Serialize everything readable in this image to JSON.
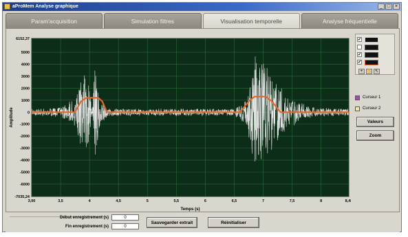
{
  "window": {
    "title": "aProMem Analyse graphique",
    "buttons": [
      "_",
      "□",
      "×"
    ]
  },
  "tabs": [
    {
      "label": "Param'acquisition",
      "active": false
    },
    {
      "label": "Simulation filtres",
      "active": false
    },
    {
      "label": "Visualisation temporelle",
      "active": true
    },
    {
      "label": "Analyse fréquentielle",
      "active": false
    }
  ],
  "colors": {
    "plot_bg": "#0c2d17",
    "grid": "#2f6a3d",
    "signal": "#e6e6e6",
    "envelope": "#e8652a",
    "cursor1": "#a64bb4",
    "cursor2": "#f2e7a2"
  },
  "side": {
    "legend_rows": [
      {
        "checked": "✔",
        "swatch": "signal"
      },
      {
        "checked": "",
        "swatch": "blank"
      },
      {
        "checked": "✔",
        "swatch": "blank"
      },
      {
        "checked": "✔",
        "swatch": "envelope"
      }
    ],
    "tool_icons": [
      "zoom-icon",
      "hand-icon",
      "cursor-icon"
    ],
    "cursor1_label": "Curseur 1",
    "cursor2_label": "Curseur 2",
    "button1_label": "Valeurs",
    "button2_label": "Zoom"
  },
  "bottom": {
    "start_label": "Début enregistrement (s)",
    "start_value": "0",
    "end_label": "Fin enregistrement (s)",
    "end_value": "0",
    "save_button": "Sauvegarder extrait",
    "reset_button": "Réinitialiser"
  },
  "chart_data": {
    "type": "line",
    "xlabel": "Temps (s)",
    "ylabel": "Amplitude",
    "xlim": [
      3.0,
      8.48
    ],
    "ylim": [
      -7035.24,
      6152.37
    ],
    "x_ticks": [
      "3,00",
      "3,5",
      "4",
      "4,5",
      "5",
      "5,5",
      "6",
      "6,5",
      "7",
      "7,5",
      "8",
      "8,48"
    ],
    "y_ticks": [
      "6152,37",
      "5000",
      "4000",
      "3000",
      "2000",
      "1000",
      "0",
      "-1000",
      "-2000",
      "-3000",
      "-4000",
      "-5000",
      "-6000",
      "-7035,24"
    ],
    "grid": true,
    "series": [
      {
        "x": [
          3.0,
          3.5,
          3.75,
          3.85,
          3.95,
          4.0,
          4.05,
          4.1,
          4.2,
          4.3,
          4.5,
          5.0,
          5.5,
          6.0,
          6.5,
          6.7,
          6.8,
          6.88,
          6.95,
          7.0,
          7.1,
          7.2,
          7.3,
          7.4,
          7.6,
          7.8,
          8.0,
          8.48
        ],
        "amplitude": [
          300,
          400,
          1200,
          2800,
          3500,
          2000,
          800,
          4200,
          1000,
          400,
          300,
          300,
          300,
          300,
          300,
          1000,
          3500,
          5800,
          5200,
          4200,
          3600,
          2800,
          2200,
          1500,
          900,
          500,
          350,
          300
        ]
      },
      {
        "x": [
          3.0,
          3.75,
          3.85,
          3.95,
          4.15,
          4.22,
          4.3,
          6.6,
          6.75,
          6.85,
          7.05,
          7.15,
          7.3,
          8.48
        ],
        "y": [
          0,
          0,
          900,
          1200,
          1200,
          900,
          0,
          0,
          900,
          1300,
          1300,
          900,
          0,
          0
        ]
      }
    ]
  }
}
